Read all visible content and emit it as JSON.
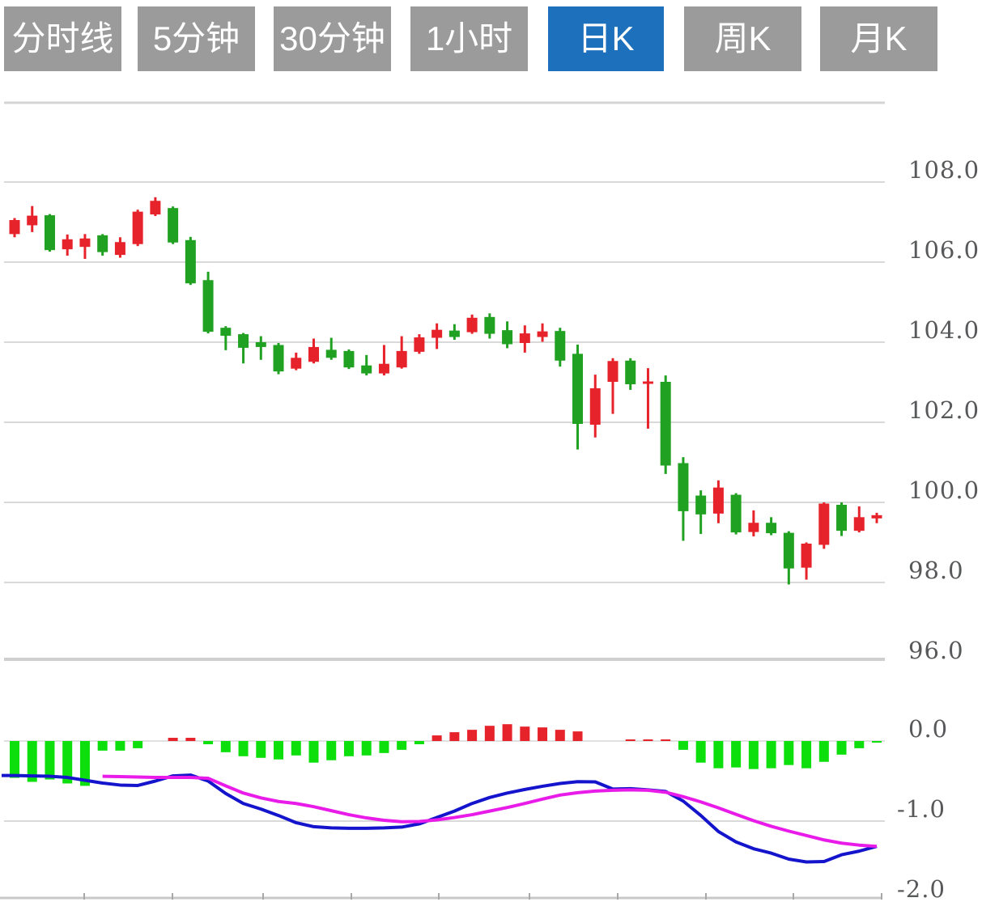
{
  "tabbar": {
    "active_tab": "日K",
    "tabs": [
      {
        "label": "分时线",
        "active": false
      },
      {
        "label": "5分钟",
        "active": false
      },
      {
        "label": "30分钟",
        "active": false
      },
      {
        "label": "1小时",
        "active": false
      },
      {
        "label": "日K",
        "active": true
      },
      {
        "label": "周K",
        "active": false
      },
      {
        "label": "月K",
        "active": false
      }
    ]
  },
  "colors": {
    "tab_gray": "#9b9b9b",
    "tab_active_blue": "#1d70bb",
    "candle_up_red": "#e6222a",
    "candle_down_green": "#21a121",
    "macd_bar_green": "#0cdf0c",
    "macd_bar_red": "#e6222a",
    "dif_line_blue": "#1414cc",
    "dea_line_magenta": "#e81be8",
    "grid_gray": "#d9d9d9",
    "axis_label_gray": "#57585a"
  },
  "chart_data": {
    "type": "candlestick",
    "title": "",
    "legend": "none",
    "grid": "on",
    "price_panel": {
      "ylim": [
        95.5,
        110
      ],
      "gridline_values": [
        108,
        106,
        104,
        102,
        100,
        98
      ],
      "axis_labels": [
        {
          "text": "108.0",
          "value": 108
        },
        {
          "text": "106.0",
          "value": 106
        },
        {
          "text": "104.0",
          "value": 104
        },
        {
          "text": "102.0",
          "value": 102
        },
        {
          "text": "100.0",
          "value": 100
        },
        {
          "text": "98.0",
          "value": 98
        },
        {
          "text": "96.0",
          "value": 96
        }
      ],
      "candles_ohlc": [
        [
          106.7,
          107.1,
          106.62,
          107.05
        ],
        [
          106.92,
          107.4,
          106.75,
          107.16
        ],
        [
          107.17,
          107.2,
          106.26,
          106.3
        ],
        [
          106.32,
          106.69,
          106.16,
          106.57
        ],
        [
          106.38,
          106.7,
          106.08,
          106.59
        ],
        [
          106.67,
          106.7,
          106.16,
          106.25
        ],
        [
          106.18,
          106.62,
          106.11,
          106.5
        ],
        [
          106.45,
          107.31,
          106.4,
          107.26
        ],
        [
          107.19,
          107.62,
          107.15,
          107.53
        ],
        [
          107.35,
          107.39,
          106.45,
          106.49
        ],
        [
          106.55,
          106.63,
          105.43,
          105.47
        ],
        [
          105.55,
          105.76,
          104.22,
          104.26
        ],
        [
          104.36,
          104.4,
          103.8,
          104.16
        ],
        [
          104.2,
          104.23,
          103.47,
          103.86
        ],
        [
          104.0,
          104.15,
          103.56,
          103.88
        ],
        [
          103.93,
          103.98,
          103.2,
          103.27
        ],
        [
          103.34,
          103.74,
          103.3,
          103.61
        ],
        [
          103.51,
          104.09,
          103.47,
          103.88
        ],
        [
          103.81,
          104.11,
          103.56,
          103.61
        ],
        [
          103.78,
          103.82,
          103.33,
          103.37
        ],
        [
          103.42,
          103.68,
          103.17,
          103.22
        ],
        [
          103.22,
          103.93,
          103.17,
          103.46
        ],
        [
          103.37,
          104.15,
          103.34,
          103.78
        ],
        [
          103.76,
          104.2,
          103.71,
          104.12
        ],
        [
          104.11,
          104.47,
          103.83,
          104.31
        ],
        [
          104.29,
          104.45,
          104.06,
          104.13
        ],
        [
          104.25,
          104.69,
          104.21,
          104.61
        ],
        [
          104.63,
          104.72,
          104.09,
          104.21
        ],
        [
          104.3,
          104.52,
          103.85,
          103.95
        ],
        [
          103.98,
          104.42,
          103.74,
          104.22
        ],
        [
          104.13,
          104.47,
          104.01,
          104.27
        ],
        [
          104.28,
          104.36,
          103.39,
          103.54
        ],
        [
          103.71,
          103.94,
          101.32,
          101.96
        ],
        [
          101.94,
          103.19,
          101.62,
          102.85
        ],
        [
          103.01,
          103.6,
          102.21,
          103.53
        ],
        [
          103.54,
          103.6,
          102.81,
          102.95
        ],
        [
          102.96,
          103.35,
          101.84,
          103.02
        ],
        [
          103.01,
          103.17,
          100.71,
          100.92
        ],
        [
          100.98,
          101.13,
          99.04,
          99.78
        ],
        [
          100.17,
          100.3,
          99.21,
          99.7
        ],
        [
          99.72,
          100.55,
          99.48,
          100.37
        ],
        [
          100.19,
          100.23,
          99.2,
          99.25
        ],
        [
          99.26,
          99.8,
          99.15,
          99.49
        ],
        [
          99.49,
          99.63,
          99.18,
          99.23
        ],
        [
          99.24,
          99.28,
          97.95,
          98.35
        ],
        [
          98.37,
          99.0,
          98.07,
          98.97
        ],
        [
          98.94,
          100.0,
          98.84,
          99.97
        ],
        [
          99.94,
          100.0,
          99.16,
          99.29
        ],
        [
          99.29,
          99.9,
          99.25,
          99.63
        ],
        [
          99.6,
          99.74,
          99.48,
          99.68
        ]
      ]
    },
    "macd_panel": {
      "ylim": [
        -2.0,
        0.3
      ],
      "gridline_values": [
        0,
        -1,
        -2
      ],
      "axis_labels": [
        {
          "text": "0.0",
          "value": 0
        },
        {
          "text": "-1.0",
          "value": -1
        },
        {
          "text": "-2.0",
          "value": -2
        }
      ],
      "histogram": [
        -0.46,
        -0.51,
        -0.48,
        -0.53,
        -0.56,
        -0.12,
        -0.12,
        -0.09,
        0,
        0.04,
        0.04,
        -0.04,
        -0.14,
        -0.19,
        -0.21,
        -0.23,
        -0.18,
        -0.27,
        -0.24,
        -0.19,
        -0.18,
        -0.15,
        -0.11,
        -0.04,
        0.07,
        0.11,
        0.14,
        0.19,
        0.21,
        0.18,
        0.17,
        0.14,
        0.12,
        0,
        0,
        0.02,
        0.02,
        0.02,
        -0.11,
        -0.27,
        -0.34,
        -0.33,
        -0.35,
        -0.34,
        -0.3,
        -0.34,
        -0.26,
        -0.17,
        -0.09,
        -0.02
      ],
      "dif_line": {
        "start_index": 0,
        "values": [
          -0.43,
          -0.435,
          -0.44,
          -0.455,
          -0.49,
          -0.525,
          -0.55,
          -0.555,
          -0.5,
          -0.435,
          -0.425,
          -0.5,
          -0.655,
          -0.78,
          -0.85,
          -0.93,
          -1.02,
          -1.07,
          -1.085,
          -1.09,
          -1.09,
          -1.085,
          -1.075,
          -1.035,
          -0.955,
          -0.875,
          -0.78,
          -0.705,
          -0.65,
          -0.605,
          -0.565,
          -0.53,
          -0.508,
          -0.51,
          -0.6,
          -0.595,
          -0.61,
          -0.63,
          -0.75,
          -0.93,
          -1.13,
          -1.26,
          -1.345,
          -1.4,
          -1.475,
          -1.51,
          -1.505,
          -1.42,
          -1.375,
          -1.315
        ]
      },
      "dea_line": {
        "start_index": 5,
        "values": [
          -0.44,
          -0.445,
          -0.45,
          -0.455,
          -0.455,
          -0.455,
          -0.465,
          -0.56,
          -0.65,
          -0.71,
          -0.755,
          -0.78,
          -0.82,
          -0.87,
          -0.92,
          -0.96,
          -0.99,
          -1.008,
          -1.005,
          -0.985,
          -0.955,
          -0.92,
          -0.875,
          -0.83,
          -0.78,
          -0.725,
          -0.675,
          -0.645,
          -0.625,
          -0.615,
          -0.61,
          -0.615,
          -0.64,
          -0.695,
          -0.76,
          -0.835,
          -0.915,
          -0.995,
          -1.065,
          -1.125,
          -1.18,
          -1.235,
          -1.275,
          -1.3,
          -1.315
        ]
      }
    }
  }
}
